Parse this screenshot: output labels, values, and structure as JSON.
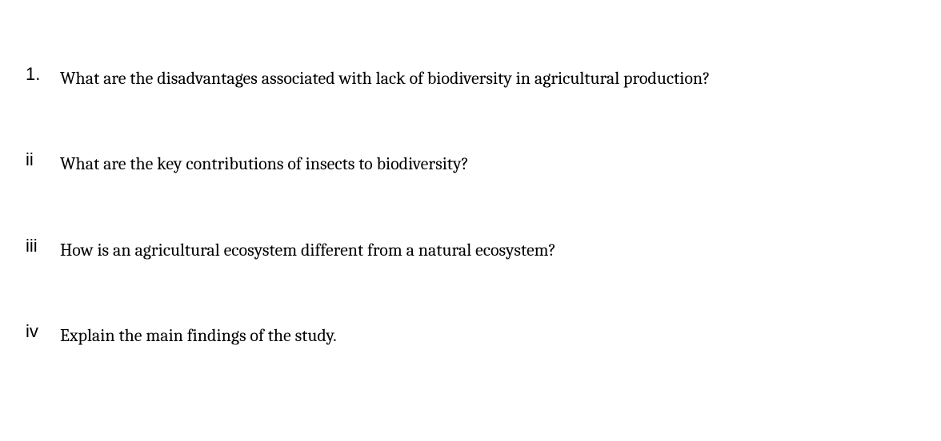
{
  "questions": {
    "items": [
      {
        "marker": "1.",
        "text": "What are the disadvantages associated with lack of biodiversity in agricultural production?"
      },
      {
        "marker": "ii",
        "text": "What are the key contributions of insects to biodiversity?"
      },
      {
        "marker": "iii",
        "text": "How is an agricultural ecosystem different from a natural ecosystem?"
      },
      {
        "marker": "iv",
        "text": "Explain the main findings of the study."
      }
    ]
  },
  "styling": {
    "background_color": "#ffffff",
    "text_color": "#000000",
    "font_family_body": "Cambria, Georgia, serif",
    "font_family_marker": "Arial, Helvetica, sans-serif",
    "body_fontsize": 22,
    "marker_fontsize": 22,
    "line_height": 1.7,
    "item_spacing": 70,
    "marker_width": 55
  }
}
